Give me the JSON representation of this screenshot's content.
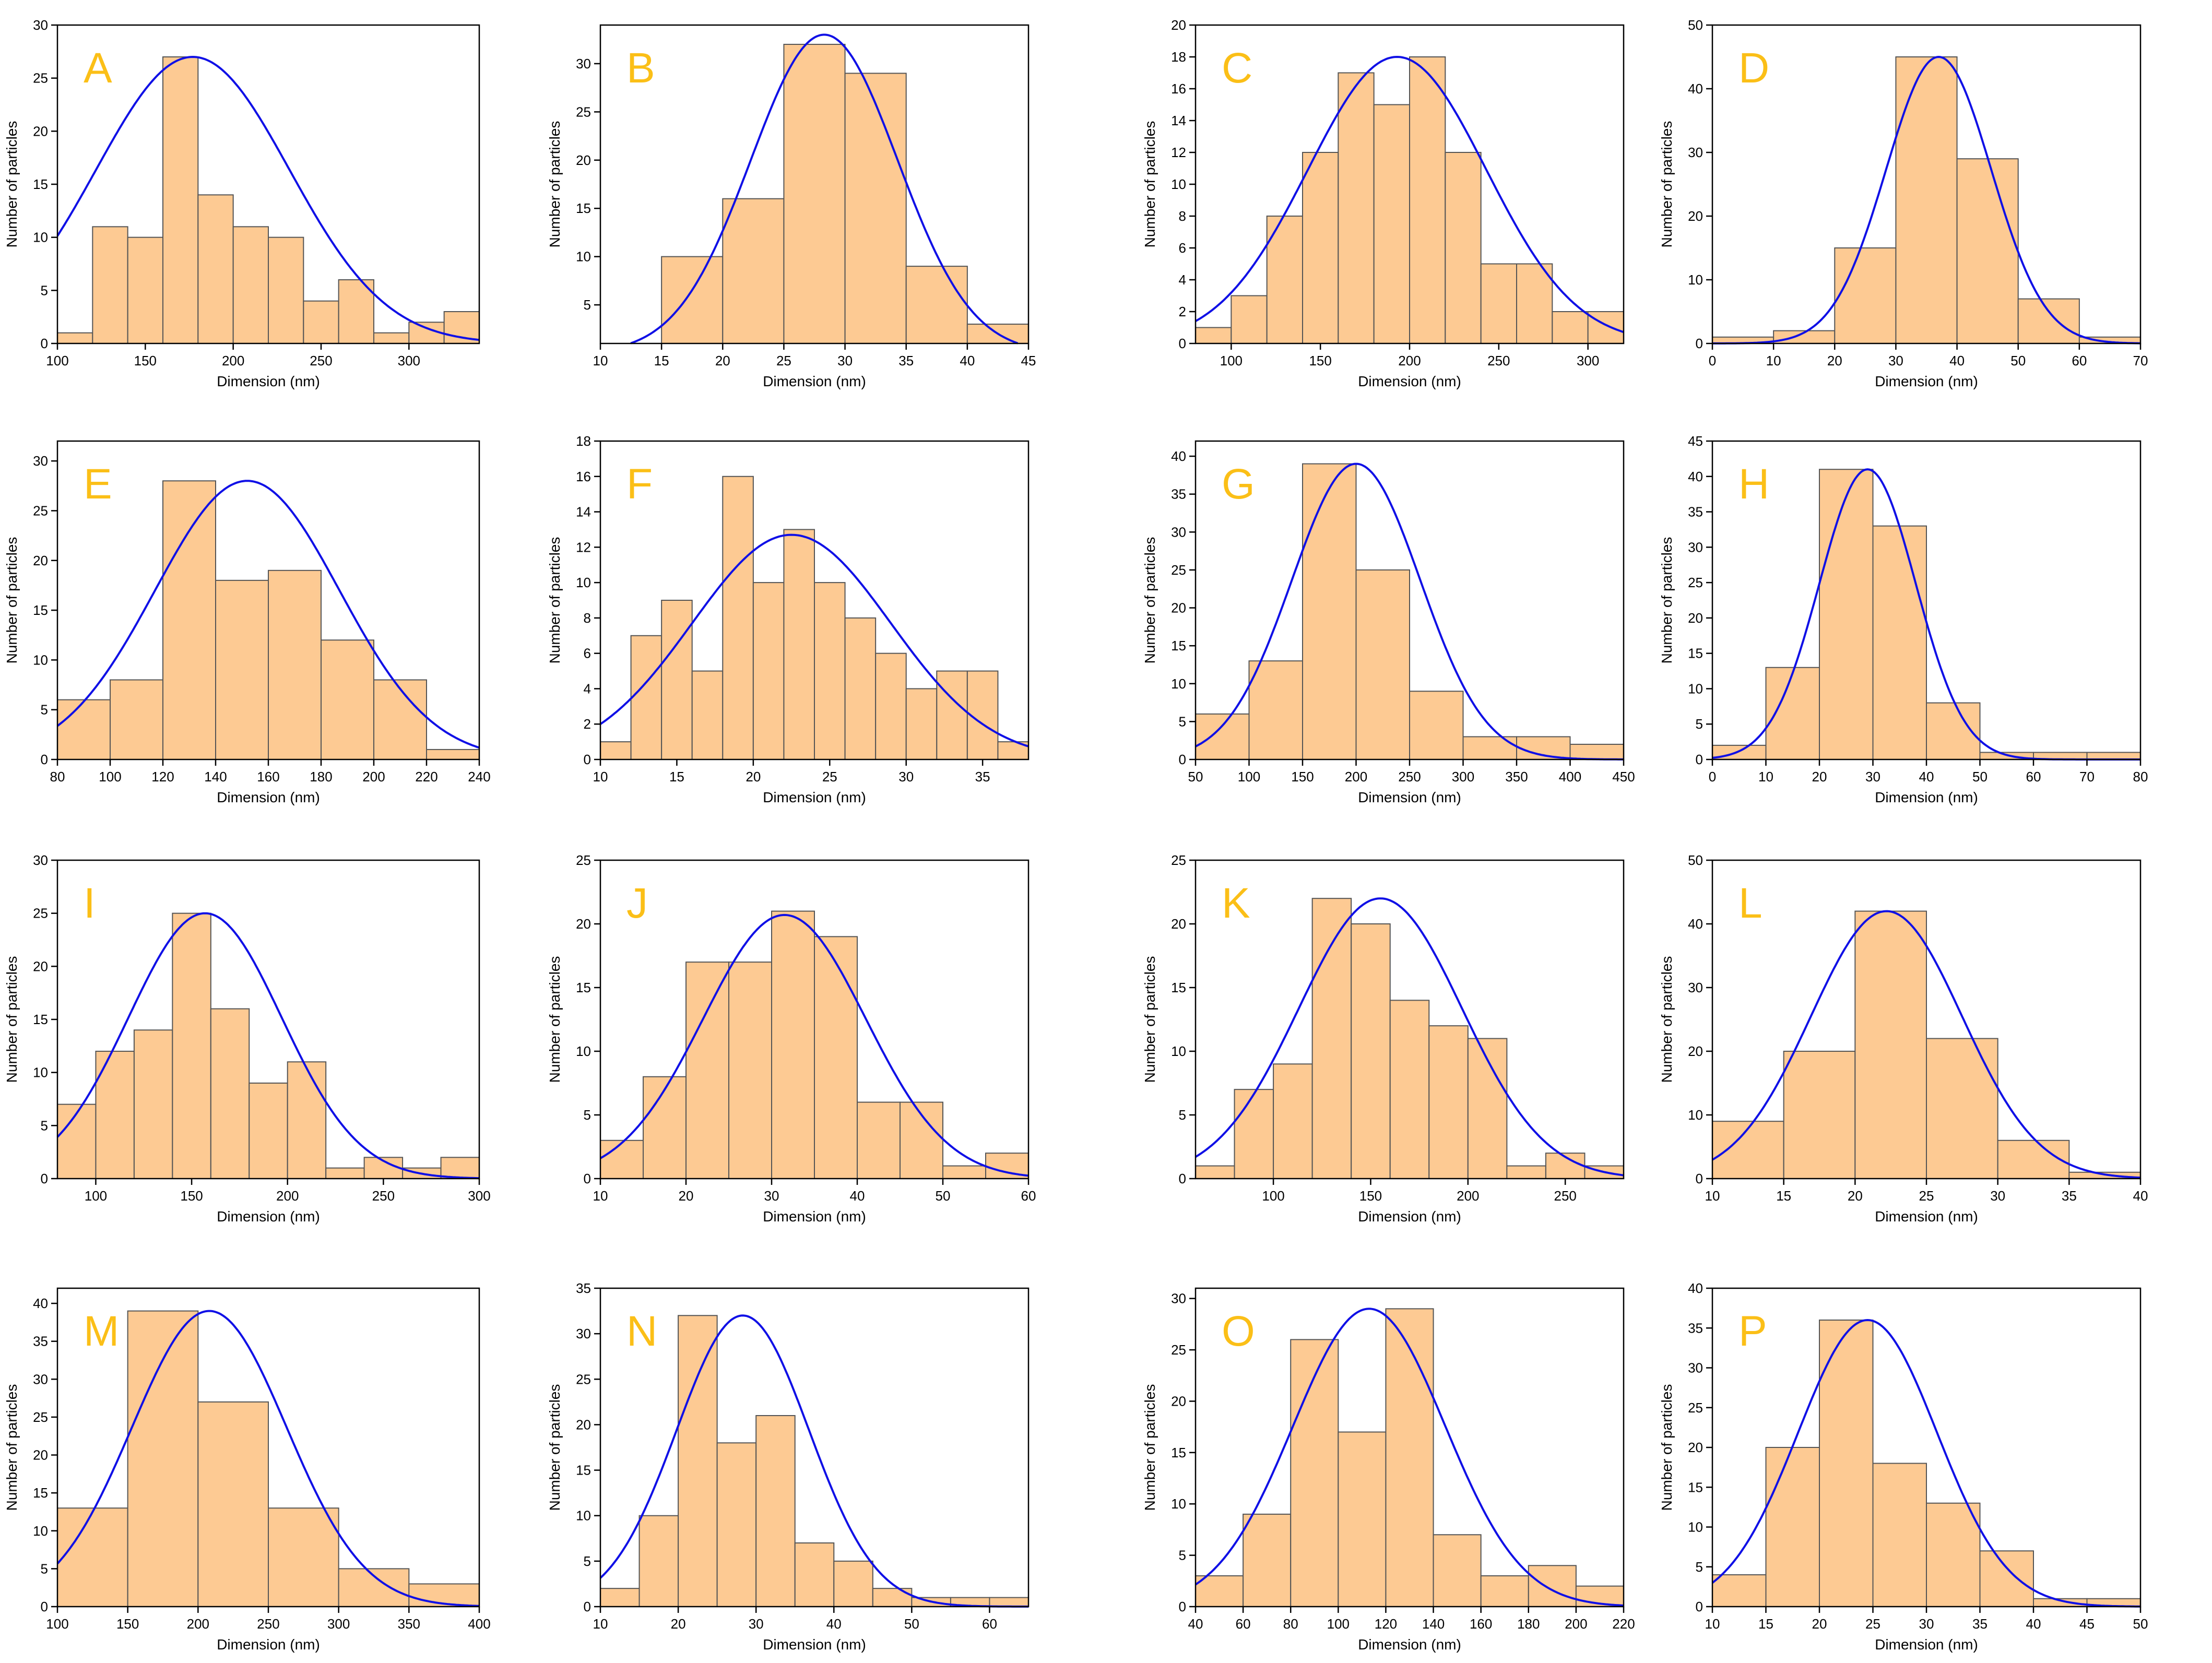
{
  "colors": {
    "bar_fill": "#fdca93",
    "bar_stroke": "#555555",
    "fit_line": "#1010e6",
    "panel_letter": "#fbbf17",
    "axis": "#000000"
  },
  "common": {
    "xlabel": "Dimension (nm)",
    "ylabel": "Number of particles"
  },
  "chart_data": [
    {
      "type": "bar",
      "panel": "A",
      "xlim": [
        100,
        340
      ],
      "ylim": [
        0,
        30
      ],
      "xticks": [
        100,
        150,
        200,
        250,
        300
      ],
      "yticks": [
        0,
        5,
        10,
        15,
        20,
        25,
        30
      ],
      "bin_start": 100,
      "bin_width": 20,
      "values": [
        1,
        11,
        10,
        27,
        14,
        11,
        10,
        4,
        6,
        1,
        2,
        3
      ],
      "fit": {
        "mean": 177,
        "sd": 55,
        "peak": 27
      }
    },
    {
      "type": "bar",
      "panel": "B",
      "xlim": [
        10,
        45
      ],
      "ylim": [
        1,
        34
      ],
      "xticks": [
        10,
        15,
        20,
        25,
        30,
        35,
        40,
        45
      ],
      "yticks": [
        5,
        10,
        15,
        20,
        25,
        30
      ],
      "bin_start": 15,
      "bin_width": 5,
      "values": [
        10,
        16,
        32,
        29,
        9,
        3
      ],
      "fit": {
        "mean": 28.3,
        "sd": 6,
        "peak": 33
      }
    },
    {
      "type": "bar",
      "panel": "C",
      "xlim": [
        80,
        320
      ],
      "ylim": [
        0,
        20
      ],
      "xticks": [
        100,
        150,
        200,
        250,
        300
      ],
      "yticks": [
        0,
        2,
        4,
        6,
        8,
        10,
        12,
        14,
        16,
        18,
        20
      ],
      "bin_start": 80,
      "bin_width": 20,
      "values": [
        1,
        3,
        8,
        12,
        17,
        15,
        18,
        12,
        5,
        5,
        2,
        2
      ],
      "fit": {
        "mean": 193,
        "sd": 50,
        "peak": 18
      }
    },
    {
      "type": "bar",
      "panel": "D",
      "xlim": [
        0,
        70
      ],
      "ylim": [
        0,
        50
      ],
      "xticks": [
        0,
        10,
        20,
        30,
        40,
        50,
        60,
        70
      ],
      "yticks": [
        0,
        10,
        20,
        30,
        40,
        50
      ],
      "bin_start": 0,
      "bin_width": 10,
      "values": [
        1,
        2,
        15,
        45,
        29,
        7,
        1
      ],
      "fit": {
        "mean": 37,
        "sd": 8.6,
        "peak": 45
      }
    },
    {
      "type": "bar",
      "panel": "E",
      "xlim": [
        80,
        240
      ],
      "ylim": [
        0,
        32
      ],
      "xticks": [
        80,
        100,
        120,
        140,
        160,
        180,
        200,
        220,
        240
      ],
      "yticks": [
        0,
        5,
        10,
        15,
        20,
        25,
        30
      ],
      "bin_start": 80,
      "bin_width": 20,
      "values": [
        6,
        8,
        28,
        18,
        19,
        12,
        8,
        1
      ],
      "fit": {
        "mean": 152,
        "sd": 35,
        "peak": 28
      }
    },
    {
      "type": "bar",
      "panel": "F",
      "xlim": [
        10,
        38
      ],
      "ylim": [
        0,
        18
      ],
      "xticks": [
        10,
        15,
        20,
        25,
        30,
        35
      ],
      "yticks": [
        0,
        2,
        4,
        6,
        8,
        10,
        12,
        14,
        16,
        18
      ],
      "bin_start": 10,
      "bin_width": 2,
      "values": [
        1,
        7,
        9,
        5,
        16,
        10,
        13,
        10,
        8,
        6,
        4,
        5,
        5,
        1
      ],
      "fit": {
        "mean": 22.5,
        "sd": 6.5,
        "peak": 12.7
      }
    },
    {
      "type": "bar",
      "panel": "G",
      "xlim": [
        50,
        450
      ],
      "ylim": [
        0,
        42
      ],
      "xticks": [
        50,
        100,
        150,
        200,
        250,
        300,
        350,
        400,
        450
      ],
      "yticks": [
        0,
        5,
        10,
        15,
        20,
        25,
        30,
        35,
        40
      ],
      "bin_start": 50,
      "bin_width": 50,
      "values": [
        6,
        13,
        39,
        25,
        9,
        3,
        3,
        2
      ],
      "fit": {
        "mean": 200,
        "sd": 60,
        "peak": 39
      }
    },
    {
      "type": "bar",
      "panel": "H",
      "xlim": [
        0,
        80
      ],
      "ylim": [
        0,
        45
      ],
      "xticks": [
        0,
        10,
        20,
        30,
        40,
        50,
        60,
        70,
        80
      ],
      "yticks": [
        0,
        5,
        10,
        15,
        20,
        25,
        30,
        35,
        40,
        45
      ],
      "bin_start": 0,
      "bin_width": 10,
      "values": [
        2,
        13,
        41,
        33,
        8,
        1,
        1,
        1
      ],
      "fit": {
        "mean": 29,
        "sd": 9,
        "peak": 41
      }
    },
    {
      "type": "bar",
      "panel": "I",
      "xlim": [
        80,
        300
      ],
      "ylim": [
        0,
        30
      ],
      "xticks": [
        100,
        150,
        200,
        250,
        300
      ],
      "yticks": [
        0,
        5,
        10,
        15,
        20,
        25,
        30
      ],
      "bin_start": 80,
      "bin_width": 20,
      "values": [
        7,
        12,
        14,
        25,
        16,
        9,
        11,
        1,
        2,
        1,
        2
      ],
      "fit": {
        "mean": 157,
        "sd": 40,
        "peak": 25
      }
    },
    {
      "type": "bar",
      "panel": "J",
      "xlim": [
        10,
        60
      ],
      "ylim": [
        0,
        25
      ],
      "xticks": [
        10,
        20,
        30,
        40,
        50,
        60
      ],
      "yticks": [
        0,
        5,
        10,
        15,
        20,
        25
      ],
      "bin_start": 10,
      "bin_width": 5,
      "values": [
        3,
        8,
        17,
        17,
        21,
        19,
        6,
        6,
        1,
        2
      ],
      "fit": {
        "mean": 31.5,
        "sd": 9.5,
        "peak": 20.7
      }
    },
    {
      "type": "bar",
      "panel": "K",
      "xlim": [
        60,
        280
      ],
      "ylim": [
        0,
        25
      ],
      "xticks": [
        100,
        150,
        200,
        250
      ],
      "yticks": [
        0,
        5,
        10,
        15,
        20,
        25
      ],
      "bin_start": 60,
      "bin_width": 20,
      "values": [
        1,
        7,
        9,
        22,
        20,
        14,
        12,
        11,
        1,
        2,
        1
      ],
      "fit": {
        "mean": 155,
        "sd": 42,
        "peak": 22
      }
    },
    {
      "type": "bar",
      "panel": "L",
      "xlim": [
        10,
        40
      ],
      "ylim": [
        0,
        50
      ],
      "xticks": [
        10,
        15,
        20,
        25,
        30,
        35,
        40
      ],
      "yticks": [
        0,
        10,
        20,
        30,
        40,
        50
      ],
      "bin_start": 10,
      "bin_width": 5,
      "values": [
        9,
        20,
        42,
        22,
        6,
        1
      ],
      "fit": {
        "mean": 22.2,
        "sd": 5.3,
        "peak": 42
      }
    },
    {
      "type": "bar",
      "panel": "M",
      "xlim": [
        100,
        400
      ],
      "ylim": [
        0,
        42
      ],
      "xticks": [
        100,
        150,
        200,
        250,
        300,
        350,
        400
      ],
      "yticks": [
        0,
        5,
        10,
        15,
        20,
        25,
        30,
        35,
        40
      ],
      "bin_start": 100,
      "bin_width": 50,
      "values": [
        13,
        39,
        27,
        13,
        5,
        3
      ],
      "fit": {
        "mean": 208,
        "sd": 55,
        "peak": 39
      }
    },
    {
      "type": "bar",
      "panel": "N",
      "xlim": [
        10,
        65
      ],
      "ylim": [
        0,
        35
      ],
      "xticks": [
        10,
        20,
        30,
        40,
        50,
        60
      ],
      "yticks": [
        0,
        5,
        10,
        15,
        20,
        25,
        30,
        35
      ],
      "bin_start": 10,
      "bin_width": 5,
      "values": [
        2,
        10,
        32,
        18,
        21,
        7,
        5,
        2,
        1,
        1,
        1
      ],
      "fit": {
        "mean": 28.3,
        "sd": 8.5,
        "peak": 32
      }
    },
    {
      "type": "bar",
      "panel": "O",
      "xlim": [
        40,
        220
      ],
      "ylim": [
        0,
        31
      ],
      "xticks": [
        40,
        60,
        80,
        100,
        120,
        140,
        160,
        180,
        200,
        220
      ],
      "yticks": [
        0,
        5,
        10,
        15,
        20,
        25,
        30
      ],
      "bin_start": 40,
      "bin_width": 20,
      "values": [
        3,
        9,
        26,
        17,
        29,
        7,
        3,
        4,
        2
      ],
      "fit": {
        "mean": 113,
        "sd": 32,
        "peak": 29
      }
    },
    {
      "type": "bar",
      "panel": "P",
      "xlim": [
        10,
        50
      ],
      "ylim": [
        0,
        40
      ],
      "xticks": [
        10,
        15,
        20,
        25,
        30,
        35,
        40,
        45,
        50
      ],
      "yticks": [
        0,
        5,
        10,
        15,
        20,
        25,
        30,
        35,
        40
      ],
      "bin_start": 10,
      "bin_width": 5,
      "values": [
        4,
        20,
        36,
        18,
        13,
        7,
        1,
        1
      ],
      "fit": {
        "mean": 24.5,
        "sd": 6.5,
        "peak": 36
      }
    }
  ]
}
